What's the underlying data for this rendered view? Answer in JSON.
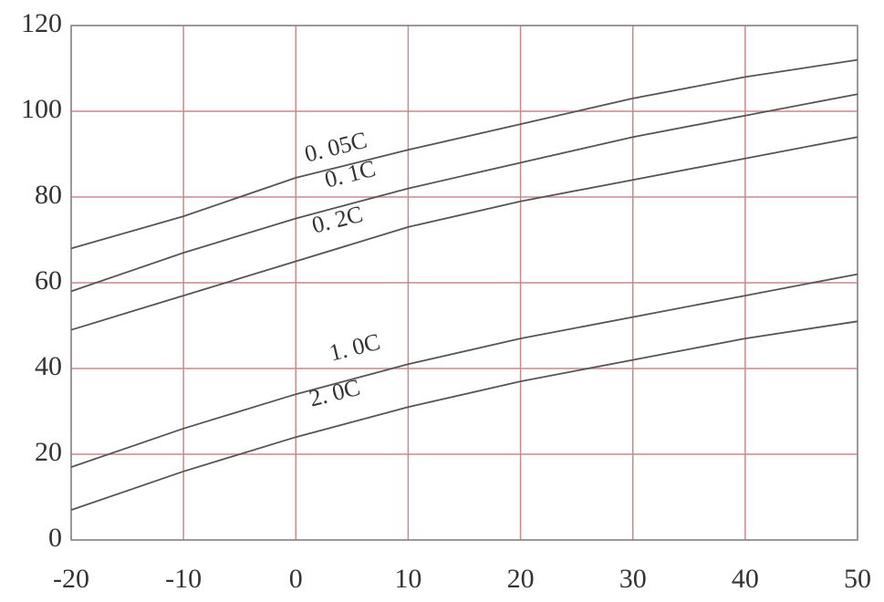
{
  "chart_data": {
    "type": "line",
    "x": [
      -20,
      -10,
      0,
      10,
      20,
      30,
      40,
      50
    ],
    "series": [
      {
        "name": "0. 05C",
        "color": "#555555",
        "values": [
          68,
          75.5,
          84.5,
          91,
          97,
          103,
          108,
          112
        ]
      },
      {
        "name": "0. 1C",
        "color": "#555555",
        "values": [
          58,
          67,
          75,
          82,
          88,
          94,
          99,
          104
        ]
      },
      {
        "name": "0. 2C",
        "color": "#555555",
        "values": [
          49,
          57,
          65,
          73,
          79,
          84,
          89,
          94
        ]
      },
      {
        "name": "1. 0C",
        "color": "#555555",
        "values": [
          17,
          26,
          34,
          41,
          47,
          52,
          57,
          62
        ]
      },
      {
        "name": "2. 0C",
        "color": "#555555",
        "values": [
          7,
          16,
          24,
          31,
          37,
          42,
          47,
          51
        ]
      }
    ],
    "xlim": [
      -20,
      50
    ],
    "xticks": [
      -20,
      -10,
      0,
      10,
      20,
      30,
      40,
      50
    ],
    "ylim": [
      0,
      120
    ],
    "yticks": [
      0,
      20,
      40,
      60,
      80,
      100,
      120
    ],
    "grid": true,
    "grid_color": "#c98a8a"
  }
}
